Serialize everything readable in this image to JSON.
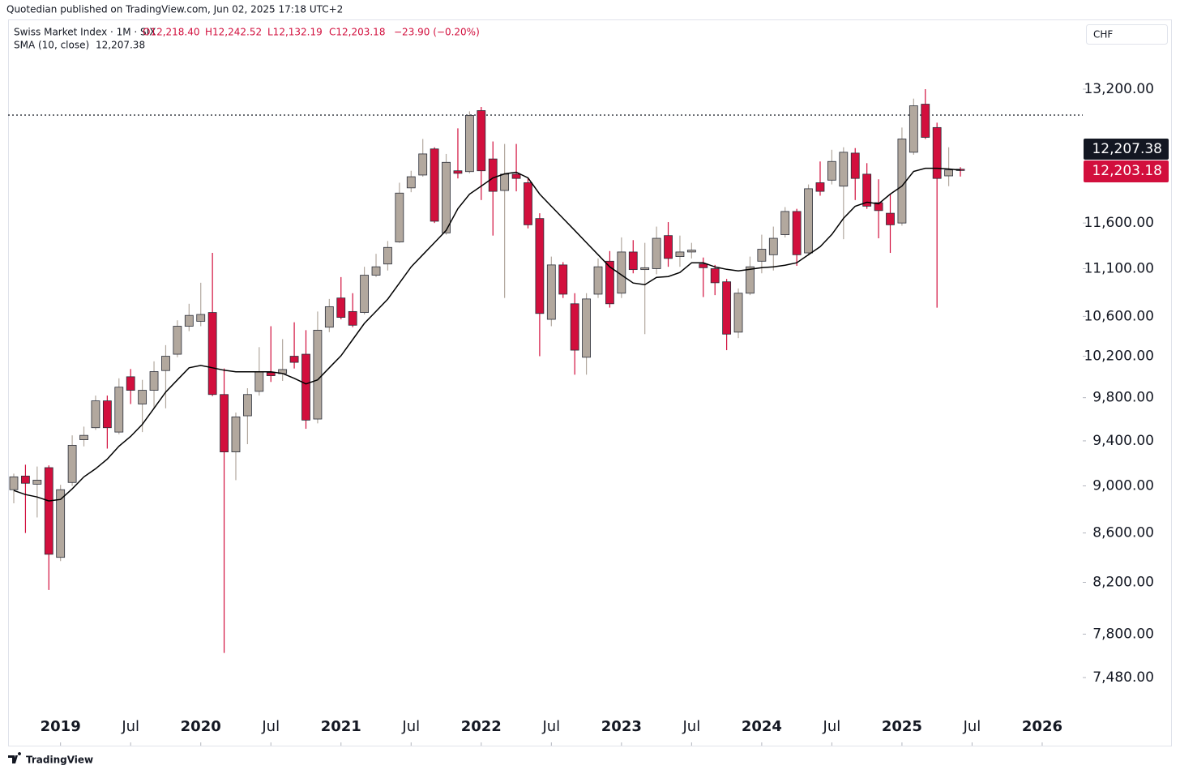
{
  "header": "Quotedian published on TradingView.com, Jun 02, 2025 17:18 UTC+2",
  "footer": "TradingView",
  "chart_data": {
    "type": "candlestick",
    "title": "Swiss Market Index · 1M · SIX",
    "ohlc_labels": {
      "open": "O12,218.40",
      "high": "H12,242.52",
      "low": "L12,132.19",
      "close": "C12,203.18",
      "change": "−23.90 (−0.20%)"
    },
    "currency": "CHF",
    "x": [
      "2018-09",
      "2018-10",
      "2018-11",
      "2018-12",
      "2019-01",
      "2019-02",
      "2019-03",
      "2019-04",
      "2019-05",
      "2019-06",
      "2019-07",
      "2019-08",
      "2019-09",
      "2019-10",
      "2019-11",
      "2019-12",
      "2020-01",
      "2020-02",
      "2020-03",
      "2020-04",
      "2020-05",
      "2020-06",
      "2020-07",
      "2020-08",
      "2020-09",
      "2020-10",
      "2020-11",
      "2020-12",
      "2021-01",
      "2021-02",
      "2021-03",
      "2021-04",
      "2021-05",
      "2021-06",
      "2021-07",
      "2021-08",
      "2021-09",
      "2021-10",
      "2021-11",
      "2021-12",
      "2022-01",
      "2022-02",
      "2022-03",
      "2022-04",
      "2022-05",
      "2022-06",
      "2022-07",
      "2022-08",
      "2022-09",
      "2022-10",
      "2022-11",
      "2022-12",
      "2023-01",
      "2023-02",
      "2023-03",
      "2023-04",
      "2023-05",
      "2023-06",
      "2023-07",
      "2023-08",
      "2023-09",
      "2023-10",
      "2023-11",
      "2023-12",
      "2024-01",
      "2024-02",
      "2024-03",
      "2024-04",
      "2024-05",
      "2024-06",
      "2024-07",
      "2024-08",
      "2024-09",
      "2024-10",
      "2024-11",
      "2024-12",
      "2025-01",
      "2025-02",
      "2025-03",
      "2025-04",
      "2025-05",
      "2025-06"
    ],
    "open": [
      8967,
      9086,
      9015,
      9160,
      8400,
      9030,
      9410,
      9520,
      9770,
      9480,
      10000,
      9740,
      9870,
      10060,
      10220,
      10500,
      10550,
      10640,
      9830,
      9300,
      9630,
      9860,
      10040,
      10030,
      10200,
      10220,
      9600,
      10490,
      10790,
      10650,
      10640,
      11030,
      11150,
      11390,
      12000,
      12150,
      12460,
      11490,
      12200,
      12190,
      12930,
      12340,
      11970,
      12160,
      12060,
      11650,
      10570,
      11140,
      10730,
      10190,
      10830,
      11180,
      10840,
      11280,
      11090,
      11100,
      11460,
      11230,
      11280,
      11150,
      11100,
      10960,
      10440,
      10840,
      11180,
      11250,
      11470,
      11730,
      11270,
      12060,
      12090,
      12020,
      12410,
      12160,
      11830,
      11710,
      11600,
      12420,
      13010,
      12720,
      12140,
      12218.4
    ],
    "high": [
      9107,
      9186,
      9170,
      9180,
      9009,
      9450,
      9530,
      9820,
      9820,
      9985,
      10075,
      9970,
      10150,
      10310,
      10560,
      10730,
      10950,
      11270,
      10080,
      9660,
      9890,
      10290,
      10500,
      10370,
      10540,
      10460,
      10650,
      10780,
      11010,
      10840,
      11120,
      11260,
      11400,
      12060,
      12200,
      12580,
      12480,
      12400,
      12710,
      12920,
      12975,
      12550,
      12520,
      12520,
      12110,
      11710,
      11230,
      11170,
      10840,
      10840,
      11210,
      11290,
      11440,
      11410,
      11380,
      11560,
      11610,
      11460,
      11380,
      11220,
      11140,
      10990,
      10890,
      11230,
      11470,
      11560,
      11780,
      11760,
      12040,
      12310,
      12450,
      12480,
      12470,
      12290,
      12100,
      11930,
      12720,
      13080,
      13200,
      12780,
      12480,
      12242.52
    ],
    "low": [
      8850,
      8600,
      8730,
      8140,
      8370,
      9000,
      9350,
      9500,
      9330,
      9460,
      9740,
      9480,
      9700,
      9700,
      10190,
      10450,
      10500,
      9815,
      7660,
      9050,
      9370,
      9820,
      9950,
      9960,
      10080,
      9510,
      9560,
      10440,
      10570,
      10490,
      10620,
      11010,
      11080,
      11380,
      11950,
      12130,
      11600,
      11470,
      12110,
      12170,
      11860,
      11460,
      10790,
      11960,
      11540,
      10200,
      10500,
      10790,
      10020,
      10020,
      10790,
      10690,
      10790,
      11050,
      10420,
      11040,
      11120,
      11120,
      11210,
      10800,
      10820,
      10260,
      10380,
      10820,
      11050,
      11080,
      11440,
      11130,
      11240,
      11910,
      12040,
      11420,
      11860,
      11760,
      11430,
      11270,
      11570,
      12390,
      12580,
      10690,
      12020,
      12132.19
    ],
    "close": [
      9079,
      9023,
      9050,
      8425,
      8967,
      9360,
      9450,
      9770,
      9520,
      9900,
      9870,
      9870,
      10050,
      10200,
      10500,
      10610,
      10620,
      9830,
      9300,
      9620,
      9830,
      10050,
      10010,
      10070,
      10140,
      9590,
      10460,
      10700,
      10590,
      10510,
      11030,
      11120,
      11330,
      11940,
      12130,
      12400,
      11620,
      12300,
      12170,
      12870,
      12200,
      11960,
      12160,
      12110,
      11580,
      10630,
      11140,
      10830,
      10260,
      10780,
      11120,
      10730,
      11280,
      11090,
      11110,
      11430,
      11210,
      11280,
      11300,
      11110,
      10950,
      10420,
      10840,
      11120,
      11310,
      11430,
      11730,
      11250,
      11990,
      11960,
      12310,
      12420,
      12110,
      11790,
      11740,
      11580,
      12580,
      12990,
      12600,
      12110,
      12210,
      12203.18
    ],
    "last_price_label": "12,203.18",
    "up_color": "#b2a89e",
    "down_color": "#d20f3d",
    "sma": {
      "name": "SMA (10, close)",
      "color": "#000000",
      "value_label": "12,207.38",
      "values": [
        8960,
        8925,
        8904,
        8870,
        8883,
        8974,
        9079,
        9150,
        9236,
        9352,
        9440,
        9551,
        9700,
        9854,
        9970,
        10087,
        10110,
        10087,
        10063,
        10048,
        10048,
        10048,
        10048,
        10032,
        9985,
        9931,
        9970,
        10087,
        10205,
        10365,
        10529,
        10652,
        10778,
        10947,
        11119,
        11250,
        11382,
        11517,
        11762,
        11928,
        12021,
        12116,
        12164,
        12183,
        12116,
        11928,
        11789,
        11652,
        11517,
        11382,
        11250,
        11119,
        11033,
        10947,
        10930,
        11007,
        11016,
        11059,
        11163,
        11163,
        11119,
        11093,
        11076,
        11093,
        11110,
        11119,
        11137,
        11163,
        11250,
        11338,
        11472,
        11652,
        11789,
        11835,
        11817,
        11928,
        12021,
        12192,
        12230,
        12230,
        12221,
        12207.38
      ]
    },
    "hline": 12874,
    "log_scale": true,
    "grid": false,
    "ylim": [
      7004,
      14141
    ],
    "yticks": [
      {
        "value": 7480,
        "label": "7,480.00"
      },
      {
        "value": 7800,
        "label": "7,800.00"
      },
      {
        "value": 8200,
        "label": "8,200.00"
      },
      {
        "value": 8600,
        "label": "8,600.00"
      },
      {
        "value": 9000,
        "label": "9,000.00"
      },
      {
        "value": 9400,
        "label": "9,400.00"
      },
      {
        "value": 9800,
        "label": "9,800.00"
      },
      {
        "value": 10200,
        "label": "10,200.00"
      },
      {
        "value": 10600,
        "label": "10,600.00"
      },
      {
        "value": 11100,
        "label": "11,100.00"
      },
      {
        "value": 11600,
        "label": "11,600.00"
      },
      {
        "value": 13200,
        "label": "13,200.00"
      }
    ],
    "xlim": [
      "2018-09",
      "2026-03"
    ],
    "xticks": [
      {
        "value": "2019-01",
        "label": "2019"
      },
      {
        "value": "2019-07",
        "label": "Jul"
      },
      {
        "value": "2020-01",
        "label": "2020"
      },
      {
        "value": "2020-07",
        "label": "Jul"
      },
      {
        "value": "2021-01",
        "label": "2021"
      },
      {
        "value": "2021-07",
        "label": "Jul"
      },
      {
        "value": "2022-01",
        "label": "2022"
      },
      {
        "value": "2022-07",
        "label": "Jul"
      },
      {
        "value": "2023-01",
        "label": "2023"
      },
      {
        "value": "2023-07",
        "label": "Jul"
      },
      {
        "value": "2024-01",
        "label": "2024"
      },
      {
        "value": "2024-07",
        "label": "Jul"
      },
      {
        "value": "2025-01",
        "label": "2025"
      },
      {
        "value": "2025-07",
        "label": "Jul"
      },
      {
        "value": "2026-01",
        "label": "2026"
      }
    ]
  }
}
